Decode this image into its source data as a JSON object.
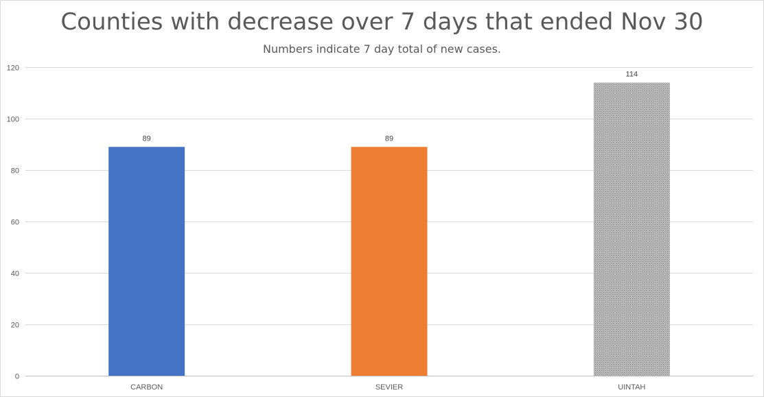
{
  "chart_data": {
    "type": "bar",
    "title": "Counties with decrease over 7 days that ended Nov 30",
    "subtitle": "Numbers indicate 7 day total of new cases.",
    "categories": [
      "CARBON",
      "SEVIER",
      "UINTAH"
    ],
    "values": [
      89,
      89,
      114
    ],
    "data_labels": [
      "89",
      "89",
      "114"
    ],
    "colors": [
      "#4472C4",
      "#ED7D31",
      "#A5A5A5"
    ],
    "uintah_pattern": "dotted-gray",
    "ylim": [
      0,
      120
    ],
    "yticks": [
      0,
      20,
      40,
      60,
      80,
      100,
      120
    ],
    "ytick_labels": [
      "0",
      "20",
      "40",
      "60",
      "80",
      "100",
      "120"
    ],
    "grid": true,
    "legend": "none",
    "xlabel": "",
    "ylabel": ""
  }
}
